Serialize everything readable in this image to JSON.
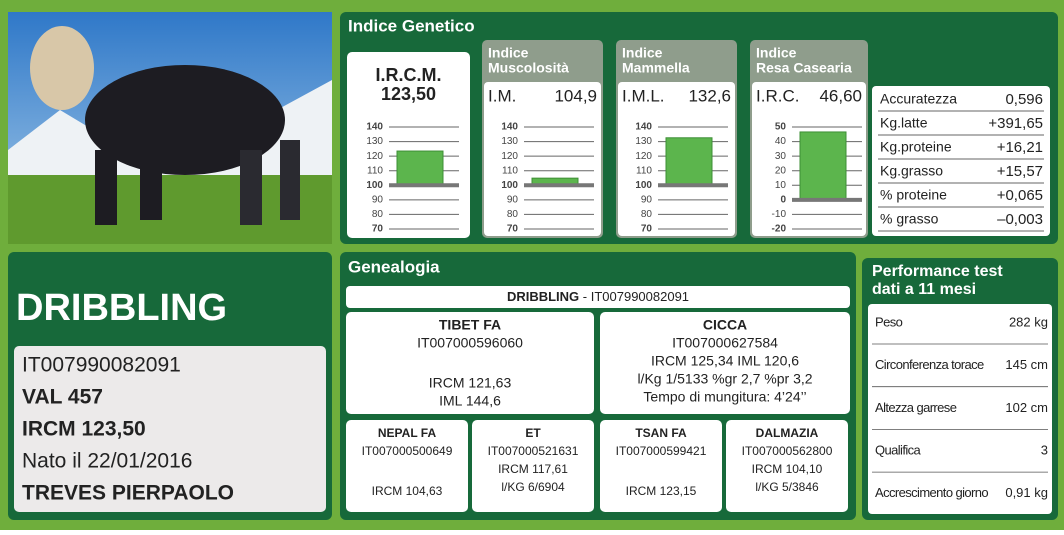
{
  "indice_genetico": {
    "title": "Indice Genetico",
    "panels": [
      {
        "label": "I.R.C.M.",
        "value": 123.5,
        "value_label": "123,50",
        "ylim": [
          70,
          140
        ],
        "yticks": [
          140,
          130,
          120,
          110,
          100,
          90,
          80,
          70
        ],
        "baseline": 100
      },
      {
        "header": [
          "Indice",
          "Muscolosità"
        ],
        "label": "I.M.",
        "value": 104.9,
        "value_label": "104,9",
        "ylim": [
          70,
          140
        ],
        "yticks": [
          140,
          130,
          120,
          110,
          100,
          90,
          80,
          70
        ],
        "baseline": 100
      },
      {
        "header": [
          "Indice",
          "Mammella"
        ],
        "label": "I.M.L.",
        "value": 132.6,
        "value_label": "132,6",
        "ylim": [
          70,
          140
        ],
        "yticks": [
          140,
          130,
          120,
          110,
          100,
          90,
          80,
          70
        ],
        "baseline": 100
      },
      {
        "header": [
          "Indice",
          "Resa Casearia"
        ],
        "label": "I.R.C.",
        "value": 46.6,
        "value_label": "46,60",
        "ylim": [
          -20,
          50
        ],
        "yticks": [
          50,
          40,
          30,
          20,
          10,
          0,
          -10,
          -20
        ],
        "baseline": 0
      }
    ],
    "stats": [
      [
        "Accuratezza",
        "0,596"
      ],
      [
        "Kg.latte",
        "+391,65"
      ],
      [
        "Kg.proteine",
        "+16,21"
      ],
      [
        "Kg.grasso",
        "+15,57"
      ],
      [
        "% proteine",
        "+0,065"
      ],
      [
        "% grasso",
        "–0,003"
      ]
    ]
  },
  "animal": {
    "name": "DRIBBLING",
    "lines": [
      "IT007990082091",
      "VAL 457",
      "IRCM 123,50",
      "Nato il 22/01/2016",
      "TREVES PIERPAOLO"
    ]
  },
  "genealogia": {
    "title": "Genealogia",
    "subject": {
      "name": "DRIBBLING",
      "id": " - IT007990082091"
    },
    "parents": [
      {
        "name": "TIBET FA",
        "id": "IT007000596060",
        "lines": [
          "",
          "IRCM 121,63",
          "IML 144,6"
        ]
      },
      {
        "name": "CICCA",
        "id": "IT007000627584",
        "lines": [
          "IRCM 125,34   IML 120,6",
          "l/Kg 1/5133 %gr 2,7 %pr 3,2",
          "Tempo di mungitura: 4’24’’"
        ]
      }
    ],
    "grandparents": [
      {
        "name": "NEPAL FA",
        "id": "IT007000500649",
        "lines": [
          "",
          "IRCM 104,63"
        ]
      },
      {
        "name": "ET",
        "id": "IT007000521631",
        "lines": [
          "IRCM 117,61",
          "l/KG 6/6904"
        ]
      },
      {
        "name": "TSAN FA",
        "id": "IT007000599421",
        "lines": [
          "",
          "IRCM 123,15"
        ]
      },
      {
        "name": "DALMAZIA",
        "id": "IT007000562800",
        "lines": [
          "IRCM 104,10",
          "l/KG 5/3846"
        ]
      }
    ]
  },
  "performance": {
    "title": [
      "Performance test",
      "dati a 11 mesi"
    ],
    "rows": [
      [
        "Peso",
        "282 kg"
      ],
      [
        "Circonferenza torace",
        "145 cm"
      ],
      [
        "Altezza garrese",
        "102 cm"
      ],
      [
        "Qualifica",
        "3"
      ],
      [
        "Accrescimento giorno",
        "0,91 kg"
      ]
    ]
  }
}
